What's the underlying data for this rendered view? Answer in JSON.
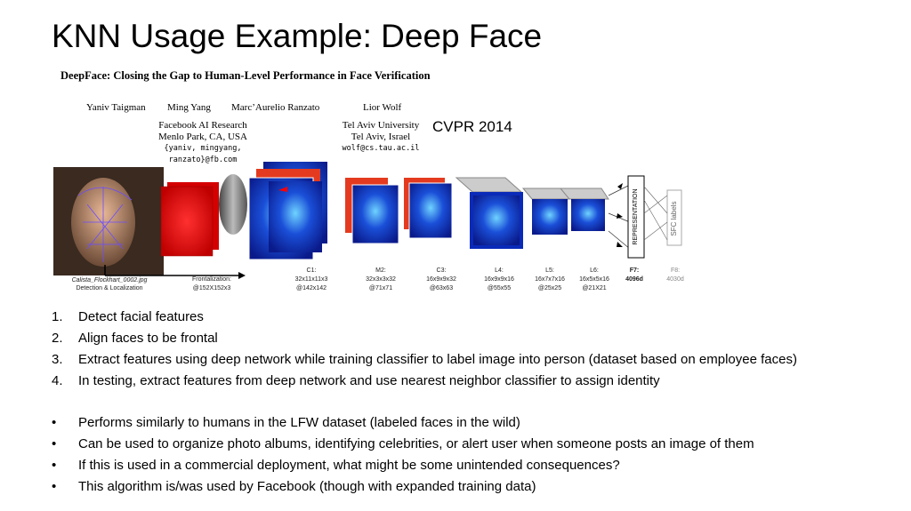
{
  "slide": {
    "title": "KNN Usage Example: Deep Face"
  },
  "paper": {
    "title": "DeepFace: Closing the Gap to Human-Level Performance in Face Verification",
    "authors": [
      "Yaniv Taigman",
      "Ming Yang",
      "Marc’Aurelio Ranzato",
      "Lior Wolf"
    ],
    "affiliation1_line1": "Facebook AI Research",
    "affiliation1_line2": "Menlo Park, CA, USA",
    "affiliation1_email": "{yaniv, mingyang, ranzato}@fb.com",
    "affiliation2_line1": "Tel Aviv University",
    "affiliation2_line2": "Tel Aviv, Israel",
    "affiliation2_email": "wolf@cs.tau.ac.il",
    "venue": "CVPR 2014"
  },
  "figure": {
    "photo_caption_1": "Calista_Flockhart_0002.jpg",
    "photo_caption_2": "Detection & Localization",
    "frontal_caption_1": "Frontalization:",
    "frontal_caption_2": "@152X152x3",
    "layers": [
      {
        "name": "C1:",
        "dims": "32x11x11x3",
        "size": "@142x142"
      },
      {
        "name": "M2:",
        "dims": "32x3x3x32",
        "size": "@71x71"
      },
      {
        "name": "C3:",
        "dims": "16x9x9x32",
        "size": "@63x63"
      },
      {
        "name": "L4:",
        "dims": "16x9x9x16",
        "size": "@55x55"
      },
      {
        "name": "L5:",
        "dims": "16x7x7x16",
        "size": "@25x25"
      },
      {
        "name": "L6:",
        "dims": "16x5x5x16",
        "size": "@21X21"
      },
      {
        "name": "F7:",
        "dims": "4096d",
        "size": ""
      },
      {
        "name": "F8:",
        "dims": "4030d",
        "size": ""
      }
    ],
    "representation_label": "REPRESENTATION",
    "sfc_label": "SFC labels"
  },
  "steps": [
    {
      "marker": "1.",
      "text": "Detect facial features"
    },
    {
      "marker": "2.",
      "text": "Align faces to be frontal"
    },
    {
      "marker": "3.",
      "text": "Extract features using deep network while training classifier to label image into person (dataset based on employee faces)"
    },
    {
      "marker": "4.",
      "text": "In testing, extract features from deep network and use nearest neighbor classifier to assign identity"
    }
  ],
  "bullets": [
    {
      "marker": "•",
      "text": "Performs similarly to humans in the LFW dataset (labeled faces in the wild)"
    },
    {
      "marker": "•",
      "text": "Can be used to organize photo albums, identifying celebrities, or alert user when someone posts an image of them"
    },
    {
      "marker": "•",
      "text": "If this is used in a commercial deployment, what might be some unintended consequences?"
    },
    {
      "marker": "•",
      "text": "This algorithm is/was used by Facebook (though with expanded training data)"
    }
  ]
}
